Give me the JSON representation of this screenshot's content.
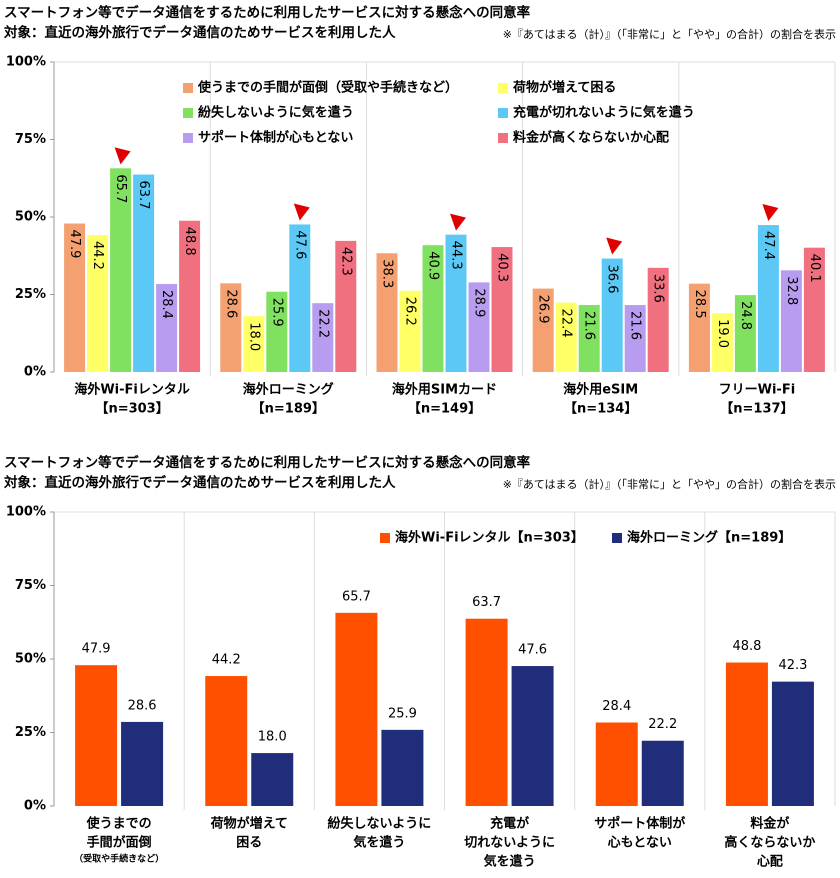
{
  "chart_data": [
    {
      "type": "bar",
      "layout": "grouped-vertical-labels",
      "title": "スマートフォン等でデータ通信をするために利用したサービスに対する懸念への同意率",
      "subtitle": "対象：直近の海外旅行でデータ通信のためサービスを利用した人",
      "note": "※『あてはまる（計）』（「非常に」と「やや」の合計）の割合を表示",
      "categories": [
        [
          "海外Wi-Fiレンタル",
          "【n=303】"
        ],
        [
          "海外ローミング",
          "【n=189】"
        ],
        [
          "海外用SIMカード",
          "【n=149】"
        ],
        [
          "海外用eSIM",
          "【n=134】"
        ],
        [
          "フリーWi-Fi",
          "【n=137】"
        ]
      ],
      "series": [
        {
          "name": "使うまでの手間が面倒（受取や手続きなど）",
          "color": "#f4a070",
          "values": [
            47.9,
            28.6,
            38.3,
            26.9,
            28.5
          ],
          "value_labels": [
            "47.9",
            "28.6",
            "38.3",
            "26.9",
            "28.5"
          ]
        },
        {
          "name": "荷物が増えて困る",
          "color": "#ffff66",
          "values": [
            44.2,
            18.0,
            26.2,
            22.4,
            19.0
          ],
          "value_labels": [
            "44.2",
            "18.0",
            "26.2",
            "22.4",
            "19.0"
          ]
        },
        {
          "name": "紛失しないように気を遣う",
          "color": "#80e060",
          "values": [
            65.7,
            25.9,
            40.9,
            21.6,
            24.8
          ],
          "value_labels": [
            "65.7",
            "25.9",
            "40.9",
            "21.6",
            "24.8"
          ]
        },
        {
          "name": "充電が切れないように気を遣う",
          "color": "#5bc8f5",
          "values": [
            63.7,
            47.6,
            44.3,
            36.6,
            47.4
          ],
          "value_labels": [
            "63.7",
            "47.6",
            "44.3",
            "36.6",
            "47.4"
          ]
        },
        {
          "name": "サポート体制が心もとない",
          "color": "#b89cf0",
          "values": [
            28.4,
            22.2,
            28.9,
            21.6,
            32.8
          ],
          "value_labels": [
            "28.4",
            "22.2",
            "28.9",
            "21.6",
            "32.8"
          ]
        },
        {
          "name": "料金が高くならないか心配",
          "color": "#f07080",
          "values": [
            48.8,
            42.3,
            40.3,
            33.6,
            40.1
          ],
          "value_labels": [
            "48.8",
            "42.3",
            "40.3",
            "33.6",
            "40.1"
          ]
        }
      ],
      "ylim": [
        0,
        100
      ],
      "yticks": [
        {
          "value": 0,
          "label": "0%"
        },
        {
          "value": 25,
          "label": "25%"
        },
        {
          "value": 50,
          "label": "50%"
        },
        {
          "value": 75,
          "label": "75%"
        },
        {
          "value": 100,
          "label": "100%"
        }
      ]
    },
    {
      "type": "bar",
      "layout": "grouped-top-labels",
      "title": "スマートフォン等でデータ通信をするために利用したサービスに対する懸念への同意率",
      "subtitle": "対象：直近の海外旅行でデータ通信のためサービスを利用した人",
      "note": "※『あてはまる（計）』（「非常に」と「やや」の合計）の割合を表示",
      "categories": [
        [
          "使うまでの",
          "手間が面倒",
          "（受取や手続きなど）"
        ],
        [
          "荷物が増えて",
          "困る"
        ],
        [
          "紛失しないように",
          "気を遣う"
        ],
        [
          "充電が",
          "切れないように",
          "気を遣う"
        ],
        [
          "サポート体制が",
          "心もとない"
        ],
        [
          "料金が",
          "高くならないか",
          "心配"
        ]
      ],
      "series": [
        {
          "name": "海外Wi-Fiレンタル【n=303】",
          "color": "#ff5000",
          "values": [
            47.9,
            44.2,
            65.7,
            63.7,
            28.4,
            48.8
          ],
          "value_labels": [
            "47.9",
            "44.2",
            "65.7",
            "63.7",
            "28.4",
            "48.8"
          ]
        },
        {
          "name": "海外ローミング【n=189】",
          "color": "#1f2d7a",
          "values": [
            28.6,
            18.0,
            25.9,
            47.6,
            22.2,
            42.3
          ],
          "value_labels": [
            "28.6",
            "18.0",
            "25.9",
            "47.6",
            "22.2",
            "42.3"
          ]
        }
      ],
      "ylim": [
        0,
        100
      ],
      "yticks": [
        {
          "value": 0,
          "label": "0%"
        },
        {
          "value": 25,
          "label": "25%"
        },
        {
          "value": 50,
          "label": "50%"
        },
        {
          "value": 75,
          "label": "75%"
        },
        {
          "value": 100,
          "label": "100%"
        }
      ]
    }
  ]
}
